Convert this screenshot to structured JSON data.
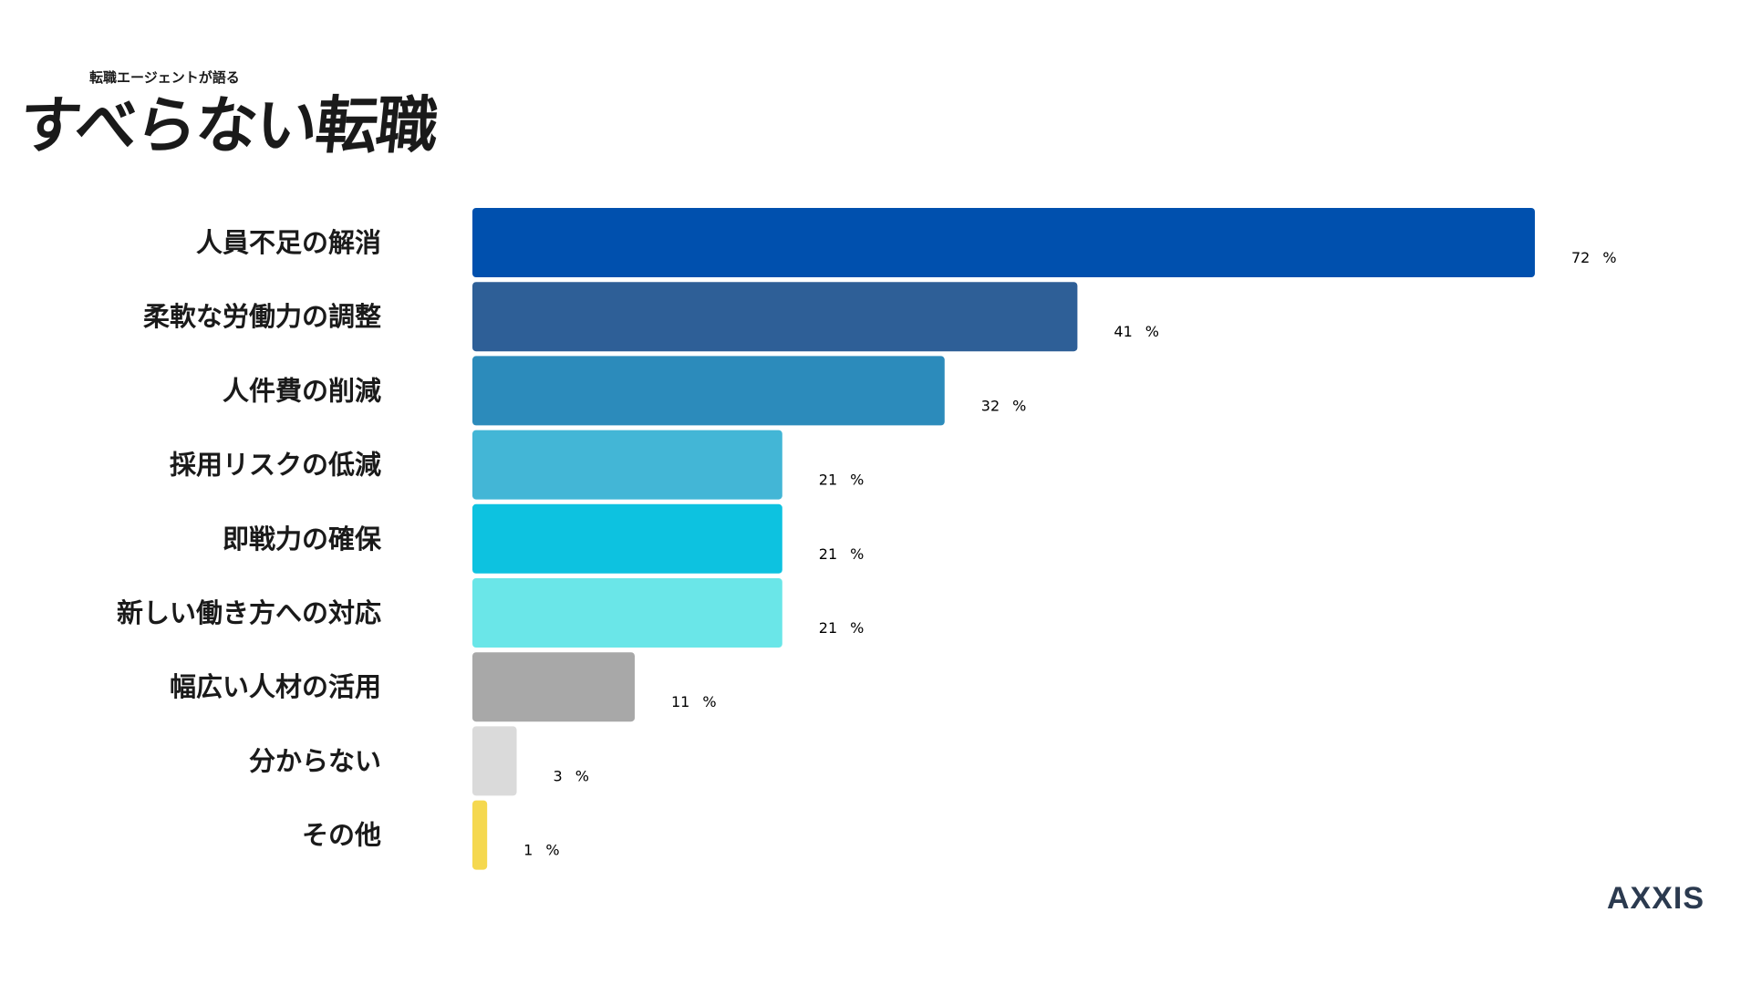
{
  "logo": {
    "small_text": "転職エージェントが語る",
    "main_text": "すべらない転職"
  },
  "brand": "AXXIS",
  "chart_data": {
    "type": "bar",
    "orientation": "horizontal",
    "categories": [
      "人員不足の解消",
      "柔軟な労働力の調整",
      "人件費の削減",
      "採用リスクの低減",
      "即戦力の確保",
      "新しい働き方への対応",
      "幅広い人材の活用",
      "分からない",
      "その他"
    ],
    "values": [
      72,
      41,
      32,
      21,
      21,
      21,
      11,
      3,
      1
    ],
    "value_labels": [
      "72",
      "41",
      "32",
      "21",
      "21",
      "21",
      "11",
      "3",
      "1"
    ],
    "unit": "%",
    "colors": [
      "#0050ae",
      "#2e5f97",
      "#2c8bbb",
      "#43b6d6",
      "#0dc2e0",
      "#6ae6e8",
      "#a8a8a8",
      "#dadada",
      "#f5d84f"
    ],
    "value_label_color": "#2e5c94",
    "xlim": [
      0,
      72
    ],
    "grid": false,
    "legend": "none",
    "title": "",
    "xlabel": "",
    "ylabel": ""
  }
}
